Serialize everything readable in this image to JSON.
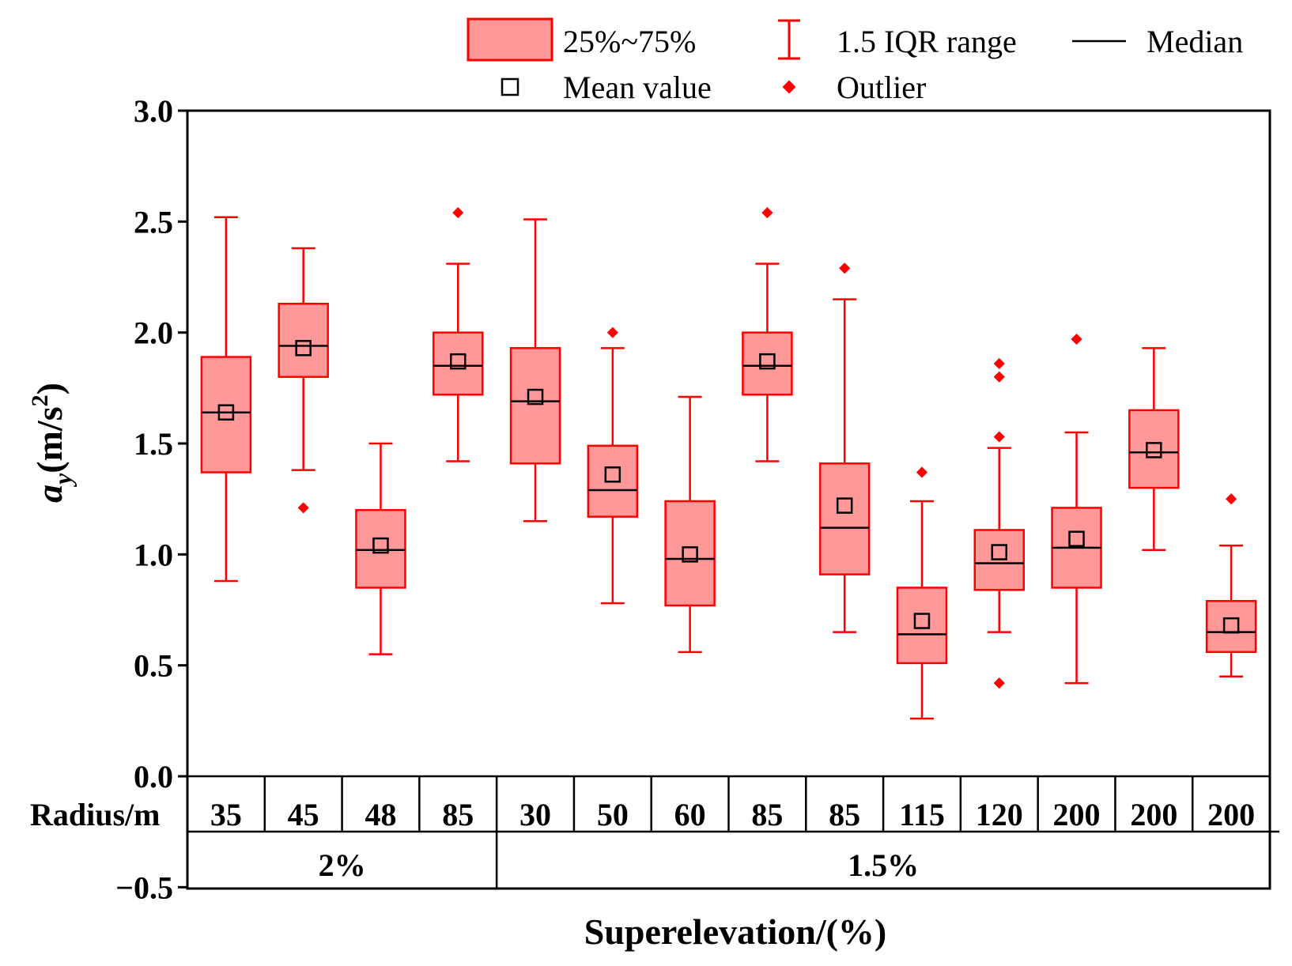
{
  "chart_data": {
    "type": "boxplot",
    "ylabel": "a_y(m/s²)",
    "ylabel_parts": {
      "main": "a",
      "sub": "y",
      "unit": "(m/s",
      "sup": "2",
      "close": ")"
    },
    "xlabel": "Superelevation/(%)",
    "ylim": [
      -0.5,
      3.0
    ],
    "yticks": [
      "3.0",
      "2.5",
      "2.0",
      "1.5",
      "1.0",
      "0.5",
      "0.0",
      "−0.5"
    ],
    "ytick_values": [
      3.0,
      2.5,
      2.0,
      1.5,
      1.0,
      0.5,
      0.0,
      -0.5
    ],
    "row_label": "Radius/m",
    "grid": false,
    "legend_position": "top",
    "legend": {
      "box": "25%~75%",
      "whisker": "1.5 IQR range",
      "median": "Median",
      "mean": "Mean value",
      "outlier": "Outlier"
    },
    "colors": {
      "box_fill": "#ff9999",
      "box_stroke": "#ff0000",
      "median": "#000000",
      "outlier": "#ff0000"
    },
    "groups": [
      {
        "label": "2%",
        "count": 4
      },
      {
        "label": "1.5%",
        "count": 10
      }
    ],
    "boxes": [
      {
        "radius": "35",
        "q1": 1.37,
        "q3": 1.89,
        "median": 1.64,
        "mean": 1.64,
        "whisker_low": 0.88,
        "whisker_high": 2.52,
        "outliers": []
      },
      {
        "radius": "45",
        "q1": 1.8,
        "q3": 2.13,
        "median": 1.94,
        "mean": 1.93,
        "whisker_low": 1.38,
        "whisker_high": 2.38,
        "outliers": [
          1.21
        ]
      },
      {
        "radius": "48",
        "q1": 0.85,
        "q3": 1.2,
        "median": 1.02,
        "mean": 1.04,
        "whisker_low": 0.55,
        "whisker_high": 1.5,
        "outliers": []
      },
      {
        "radius": "85",
        "q1": 1.72,
        "q3": 2.0,
        "median": 1.85,
        "mean": 1.87,
        "whisker_low": 1.42,
        "whisker_high": 2.31,
        "outliers": [
          2.54
        ]
      },
      {
        "radius": "30",
        "q1": 1.41,
        "q3": 1.93,
        "median": 1.69,
        "mean": 1.71,
        "whisker_low": 1.15,
        "whisker_high": 2.51,
        "outliers": []
      },
      {
        "radius": "50",
        "q1": 1.17,
        "q3": 1.49,
        "median": 1.29,
        "mean": 1.36,
        "whisker_low": 0.78,
        "whisker_high": 1.93,
        "outliers": [
          2.0
        ]
      },
      {
        "radius": "60",
        "q1": 0.77,
        "q3": 1.24,
        "median": 0.98,
        "mean": 1.0,
        "whisker_low": 0.56,
        "whisker_high": 1.71,
        "outliers": []
      },
      {
        "radius": "85",
        "q1": 1.72,
        "q3": 2.0,
        "median": 1.85,
        "mean": 1.87,
        "whisker_low": 1.42,
        "whisker_high": 2.31,
        "outliers": [
          2.54
        ]
      },
      {
        "radius": "85",
        "q1": 0.91,
        "q3": 1.41,
        "median": 1.12,
        "mean": 1.22,
        "whisker_low": 0.65,
        "whisker_high": 2.15,
        "outliers": [
          2.29
        ]
      },
      {
        "radius": "115",
        "q1": 0.51,
        "q3": 0.85,
        "median": 0.64,
        "mean": 0.7,
        "whisker_low": 0.26,
        "whisker_high": 1.24,
        "outliers": [
          1.37
        ]
      },
      {
        "radius": "120",
        "q1": 0.84,
        "q3": 1.11,
        "median": 0.96,
        "mean": 1.01,
        "whisker_low": 0.65,
        "whisker_high": 1.48,
        "outliers": [
          1.86,
          1.8,
          1.53,
          0.42
        ]
      },
      {
        "radius": "200",
        "q1": 0.85,
        "q3": 1.21,
        "median": 1.03,
        "mean": 1.07,
        "whisker_low": 0.42,
        "whisker_high": 1.55,
        "outliers": [
          1.97
        ]
      },
      {
        "radius": "200",
        "q1": 1.3,
        "q3": 1.65,
        "median": 1.46,
        "mean": 1.47,
        "whisker_low": 1.02,
        "whisker_high": 1.93,
        "outliers": []
      },
      {
        "radius": "200",
        "q1": 0.56,
        "q3": 0.79,
        "median": 0.65,
        "mean": 0.68,
        "whisker_low": 0.45,
        "whisker_high": 1.04,
        "outliers": [
          1.25
        ]
      }
    ]
  }
}
